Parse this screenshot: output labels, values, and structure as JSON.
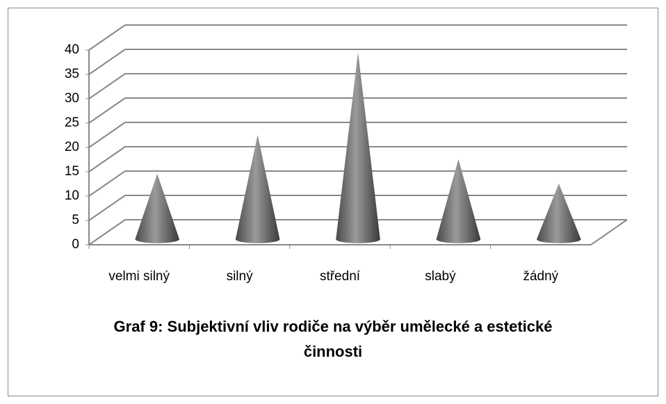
{
  "chart_data": {
    "type": "cone",
    "title": "Graf 9: Subjektivní vliv rodiče na výběr umělecké a estetické činnosti",
    "categories": [
      "velmi silný",
      "silný",
      "střední",
      "slabý",
      "žádný"
    ],
    "values": [
      12,
      20,
      37,
      15,
      10
    ],
    "color": "#6e6e6e",
    "ylim": [
      0,
      40
    ],
    "yticks": [
      0,
      5,
      10,
      15,
      20,
      25,
      30,
      35,
      40
    ],
    "grid": true
  }
}
